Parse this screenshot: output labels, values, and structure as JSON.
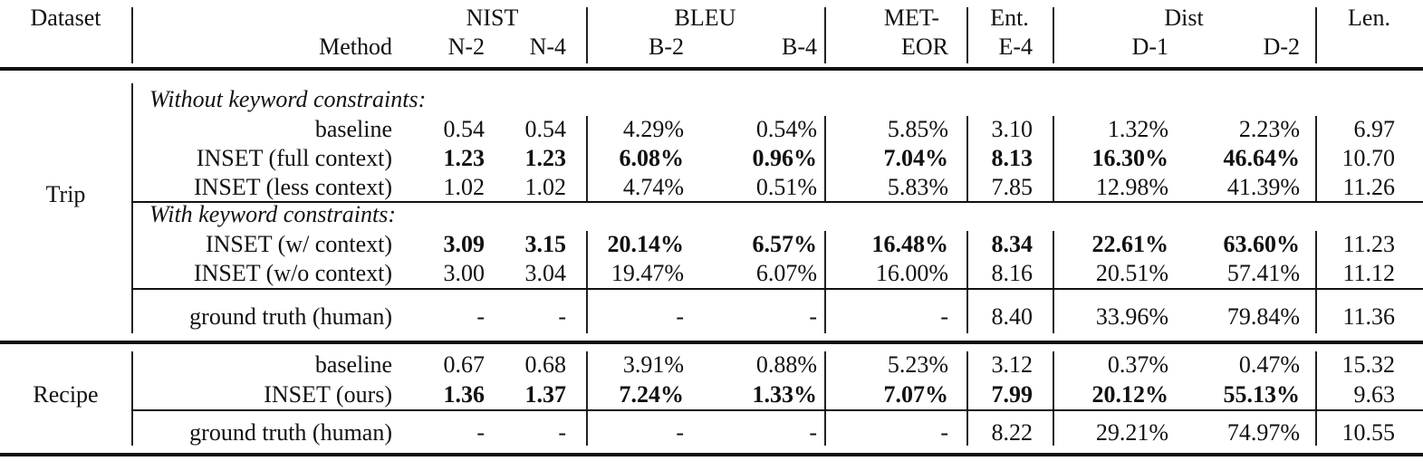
{
  "header": {
    "dataset": "Dataset",
    "method": "Method",
    "groups": [
      "NIST",
      "BLEU",
      "MET-",
      "Ent.",
      "Dist",
      "Len."
    ],
    "subcols": [
      "N-2",
      "N-4",
      "B-2",
      "B-4",
      "EOR",
      "E-4",
      "D-1",
      "D-2"
    ]
  },
  "sections": [
    {
      "dataset": "Trip",
      "subsections": [
        {
          "title": "Without keyword constraints:",
          "rows": [
            {
              "method": "baseline",
              "values": [
                "0.54",
                "0.54",
                "4.29%",
                "0.54%",
                "5.85%",
                "3.10",
                "1.32%",
                "2.23%",
                "6.97"
              ],
              "bold": [
                false,
                false,
                false,
                false,
                false,
                false,
                false,
                false,
                false
              ]
            },
            {
              "method": "INSET (full context)",
              "values": [
                "1.23",
                "1.23",
                "6.08%",
                "0.96%",
                "7.04%",
                "8.13",
                "16.30%",
                "46.64%",
                "10.70"
              ],
              "bold": [
                true,
                true,
                true,
                true,
                true,
                true,
                true,
                true,
                false
              ]
            },
            {
              "method": "INSET (less context)",
              "values": [
                "1.02",
                "1.02",
                "4.74%",
                "0.51%",
                "5.83%",
                "7.85",
                "12.98%",
                "41.39%",
                "11.26"
              ],
              "bold": [
                false,
                false,
                false,
                false,
                false,
                false,
                false,
                false,
                false
              ]
            }
          ]
        },
        {
          "title": "With keyword constraints:",
          "rows": [
            {
              "method": "INSET (w/ context)",
              "values": [
                "3.09",
                "3.15",
                "20.14%",
                "6.57%",
                "16.48%",
                "8.34",
                "22.61%",
                "63.60%",
                "11.23"
              ],
              "bold": [
                true,
                true,
                true,
                true,
                true,
                true,
                true,
                true,
                false
              ]
            },
            {
              "method": "INSET (w/o context)",
              "values": [
                "3.00",
                "3.04",
                "19.47%",
                "6.07%",
                "16.00%",
                "8.16",
                "20.51%",
                "57.41%",
                "11.12"
              ],
              "bold": [
                false,
                false,
                false,
                false,
                false,
                false,
                false,
                false,
                false
              ]
            }
          ]
        },
        {
          "title": "",
          "rows": [
            {
              "method": "ground truth (human)",
              "values": [
                "-",
                "-",
                "-",
                "-",
                "-",
                "8.40",
                "33.96%",
                "79.84%",
                "11.36"
              ],
              "bold": [
                false,
                false,
                false,
                false,
                false,
                false,
                false,
                false,
                false
              ]
            }
          ]
        }
      ]
    },
    {
      "dataset": "Recipe",
      "subsections": [
        {
          "title": "",
          "rows": [
            {
              "method": "baseline",
              "values": [
                "0.67",
                "0.68",
                "3.91%",
                "0.88%",
                "5.23%",
                "3.12",
                "0.37%",
                "0.47%",
                "15.32"
              ],
              "bold": [
                false,
                false,
                false,
                false,
                false,
                false,
                false,
                false,
                false
              ]
            },
            {
              "method": "INSET (ours)",
              "values": [
                "1.36",
                "1.37",
                "7.24%",
                "1.33%",
                "7.07%",
                "7.99",
                "20.12%",
                "55.13%",
                "9.63"
              ],
              "bold": [
                true,
                true,
                true,
                true,
                true,
                true,
                true,
                true,
                false
              ]
            }
          ]
        },
        {
          "title": "",
          "rows": [
            {
              "method": "ground truth (human)",
              "values": [
                "-",
                "-",
                "-",
                "-",
                "-",
                "8.22",
                "29.21%",
                "74.97%",
                "10.55"
              ],
              "bold": [
                false,
                false,
                false,
                false,
                false,
                false,
                false,
                false,
                false
              ]
            }
          ]
        }
      ]
    }
  ]
}
